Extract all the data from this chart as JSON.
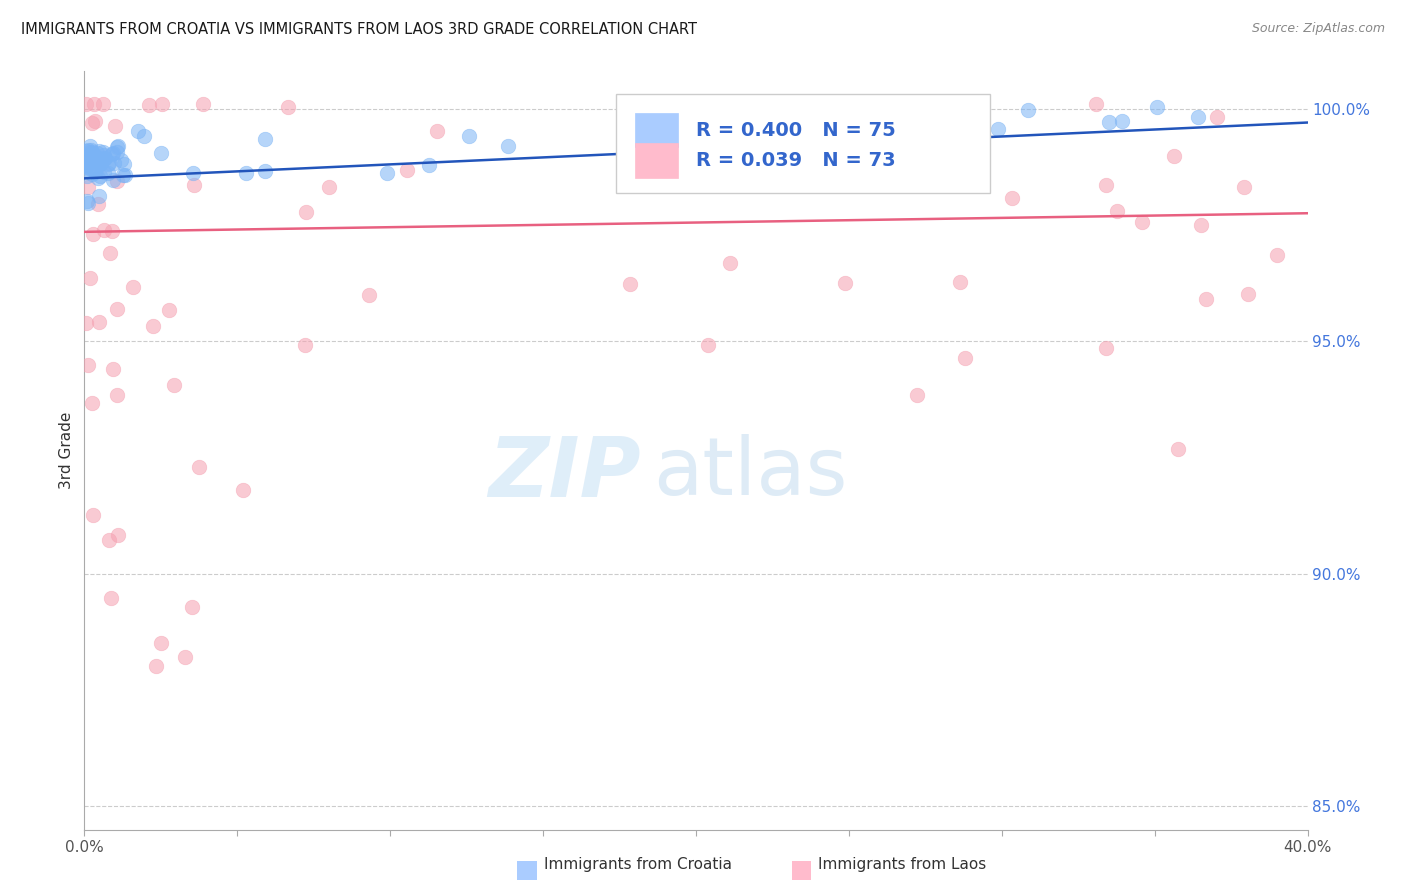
{
  "title": "IMMIGRANTS FROM CROATIA VS IMMIGRANTS FROM LAOS 3RD GRADE CORRELATION CHART",
  "source": "Source: ZipAtlas.com",
  "ylabel": "3rd Grade",
  "xmin": 0.0,
  "xmax": 0.4,
  "ymin": 0.845,
  "ymax": 1.008,
  "ytick_vals": [
    0.85,
    0.9,
    0.95,
    1.0
  ],
  "ytick_labels": [
    "85.0%",
    "90.0%",
    "95.0%",
    "100.0%"
  ],
  "grid_color": "#cccccc",
  "background_color": "#ffffff",
  "title_color": "#1a1a1a",
  "blue_scatter_color": "#7ab3f5",
  "pink_scatter_color": "#f5a0b0",
  "blue_line_color": "#2255bb",
  "pink_line_color": "#e86080",
  "right_tick_color": "#4477dd",
  "legend_R_blue": "0.400",
  "legend_N_blue": "75",
  "legend_R_pink": "0.039",
  "legend_N_pink": "73",
  "bottom_legend_croatia": "Immigrants from Croatia",
  "bottom_legend_laos": "Immigrants from Laos",
  "blue_trend_x0": 0.0,
  "blue_trend_y0": 0.985,
  "blue_trend_x1": 0.4,
  "blue_trend_y1": 0.997,
  "pink_trend_x0": 0.0,
  "pink_trend_y0": 0.9735,
  "pink_trend_x1": 0.4,
  "pink_trend_y1": 0.9775
}
